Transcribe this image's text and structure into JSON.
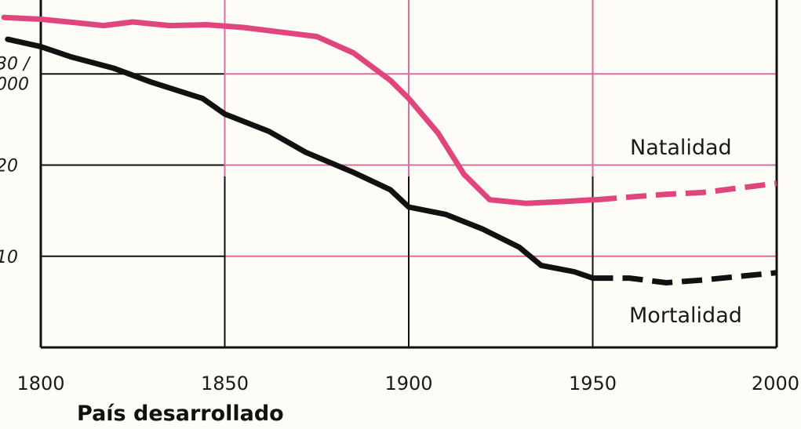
{
  "chart_data": {
    "type": "line",
    "title": "País desarrollado",
    "xlabel": "",
    "ylabel": "",
    "xlim": [
      1800,
      2000
    ],
    "ylim": [
      0,
      40
    ],
    "x_ticks": [
      {
        "value": 1800,
        "label": "1800"
      },
      {
        "value": 1850,
        "label": "1850"
      },
      {
        "value": 1900,
        "label": "1900"
      },
      {
        "value": 1950,
        "label": "1950"
      },
      {
        "value": 2000,
        "label": "2000"
      }
    ],
    "y_ticks": [
      {
        "value": 30,
        "label_lines": [
          "30 /",
          "000"
        ]
      },
      {
        "value": 20,
        "label_lines": [
          "20"
        ]
      },
      {
        "value": 10,
        "label_lines": [
          "10"
        ]
      }
    ],
    "grid": true,
    "series": [
      {
        "name": "Natalidad",
        "color": "#e0457b",
        "style": "solid",
        "points": [
          [
            1790,
            36.2
          ],
          [
            1800,
            36.0
          ],
          [
            1810,
            35.6
          ],
          [
            1817,
            35.3
          ],
          [
            1825,
            35.7
          ],
          [
            1835,
            35.3
          ],
          [
            1845,
            35.4
          ],
          [
            1855,
            35.1
          ],
          [
            1865,
            34.6
          ],
          [
            1875,
            34.1
          ],
          [
            1885,
            32.3
          ],
          [
            1895,
            29.3
          ],
          [
            1900,
            27.3
          ],
          [
            1908,
            23.5
          ],
          [
            1915,
            19.0
          ],
          [
            1922,
            16.2
          ],
          [
            1932,
            15.8
          ],
          [
            1942,
            16.0
          ],
          [
            1950,
            16.2
          ],
          [
            1951,
            16.2
          ]
        ],
        "projection": [
          [
            1951,
            16.2
          ],
          [
            1960,
            16.5
          ],
          [
            1970,
            16.8
          ],
          [
            1980,
            17.0
          ],
          [
            1990,
            17.5
          ],
          [
            2000,
            18.0
          ]
        ]
      },
      {
        "name": "Mortalidad",
        "color": "#111111",
        "style": "solid",
        "points": [
          [
            1791,
            33.8
          ],
          [
            1800,
            33.0
          ],
          [
            1808,
            31.9
          ],
          [
            1820,
            30.6
          ],
          [
            1830,
            29.1
          ],
          [
            1844,
            27.3
          ],
          [
            1850,
            25.6
          ],
          [
            1862,
            23.7
          ],
          [
            1872,
            21.4
          ],
          [
            1885,
            19.2
          ],
          [
            1895,
            17.3
          ],
          [
            1900,
            15.4
          ],
          [
            1910,
            14.6
          ],
          [
            1920,
            13.0
          ],
          [
            1930,
            11.0
          ],
          [
            1936,
            9.0
          ],
          [
            1945,
            8.3
          ],
          [
            1950,
            7.6
          ]
        ],
        "projection": [
          [
            1950,
            7.6
          ],
          [
            1960,
            7.6
          ],
          [
            1970,
            7.1
          ],
          [
            1980,
            7.4
          ],
          [
            1990,
            7.8
          ],
          [
            2000,
            8.2
          ]
        ]
      }
    ],
    "colors": {
      "grid_pink": "#d76fa0",
      "axis": "#111111",
      "background": "#fdfcf7"
    }
  }
}
